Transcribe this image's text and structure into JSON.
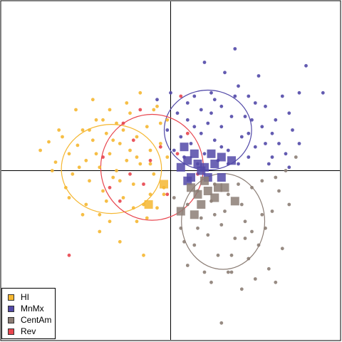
{
  "chart_data": {
    "type": "scatter",
    "title": "",
    "xlabel": "",
    "ylabel": "",
    "xlim": [
      -1.0,
      1.0
    ],
    "ylim": [
      -1.0,
      1.0
    ],
    "axes_lines": {
      "x": 0,
      "y": 0
    },
    "grid": false,
    "legend": {
      "placement": "bottom-left",
      "entries": [
        "HI",
        "MnMx",
        "CentAm",
        "Rev"
      ]
    },
    "series": [
      {
        "name": "HI",
        "color": "#F5B731",
        "points": [
          [
            -0.77,
            0.12
          ],
          [
            -0.72,
            0.17
          ],
          [
            -0.68,
            0.05
          ],
          [
            -0.64,
            0.2
          ],
          [
            -0.6,
            0.1
          ],
          [
            -0.58,
            -0.02
          ],
          [
            -0.55,
            0.15
          ],
          [
            -0.52,
            0.24
          ],
          [
            -0.5,
            0.06
          ],
          [
            -0.48,
            -0.06
          ],
          [
            -0.46,
            0.18
          ],
          [
            -0.44,
            0.3
          ],
          [
            -0.42,
            0.02
          ],
          [
            -0.4,
            -0.12
          ],
          [
            -0.38,
            0.22
          ],
          [
            -0.36,
            0.1
          ],
          [
            -0.34,
            -0.04
          ],
          [
            -0.32,
            0.28
          ],
          [
            -0.3,
            0.16
          ],
          [
            -0.28,
            -0.16
          ],
          [
            -0.26,
            0.06
          ],
          [
            -0.24,
            0.34
          ],
          [
            -0.22,
            -0.08
          ],
          [
            -0.2,
            0.2
          ],
          [
            -0.18,
            0.04
          ],
          [
            -0.16,
            -0.2
          ],
          [
            -0.14,
            0.26
          ],
          [
            -0.12,
            0.12
          ],
          [
            -0.1,
            -0.02
          ],
          [
            -0.08,
            0.38
          ],
          [
            -0.06,
            0.16
          ],
          [
            -0.04,
            -0.1
          ],
          [
            -0.02,
            0.08
          ],
          [
            -0.36,
            -0.3
          ],
          [
            -0.42,
            -0.26
          ],
          [
            -0.3,
            -0.42
          ],
          [
            -0.2,
            -0.3
          ],
          [
            -0.12,
            -0.14
          ],
          [
            -0.5,
            -0.2
          ],
          [
            -0.62,
            -0.1
          ],
          [
            -0.7,
            0.0
          ],
          [
            -0.26,
            0.4
          ],
          [
            -0.18,
            0.46
          ],
          [
            -0.1,
            0.36
          ],
          [
            -0.06,
            0.28
          ],
          [
            -0.56,
            0.36
          ],
          [
            -0.46,
            0.42
          ],
          [
            -0.38,
            -0.18
          ],
          [
            -0.3,
            -0.06
          ],
          [
            -0.22,
            -0.22
          ],
          [
            -0.14,
            -0.28
          ],
          [
            -0.16,
            -0.5
          ],
          [
            -0.04,
            -0.14
          ],
          [
            -0.02,
            0.3
          ],
          [
            -0.66,
            0.24
          ],
          [
            -0.24,
            0.12
          ],
          [
            -0.34,
            0.18
          ],
          [
            -0.44,
            0.1
          ],
          [
            -0.54,
            0.02
          ],
          [
            -0.48,
            0.24
          ],
          [
            -0.4,
            0.3
          ],
          [
            -0.32,
            0.0
          ],
          [
            -0.28,
            0.24
          ],
          [
            -0.08,
            -0.22
          ],
          [
            -0.6,
            -0.16
          ],
          [
            -0.52,
            -0.26
          ],
          [
            -0.42,
            -0.36
          ],
          [
            -0.36,
            0.36
          ],
          [
            -0.2,
            0.08
          ],
          [
            -0.12,
            0.04
          ]
        ],
        "centroids": [
          [
            -0.04,
            -0.08
          ],
          [
            -0.13,
            -0.2
          ]
        ],
        "ellipse": {
          "cx": -0.35,
          "cy": 0.01,
          "rx": 0.296,
          "ry": 0.263,
          "angle": 0
        }
      },
      {
        "name": "MnMx",
        "color": "#5249A8",
        "points": [
          [
            0.2,
            0.64
          ],
          [
            0.32,
            0.58
          ],
          [
            0.38,
            0.72
          ],
          [
            0.24,
            0.46
          ],
          [
            0.4,
            0.5
          ],
          [
            0.46,
            0.44
          ],
          [
            0.52,
            0.56
          ],
          [
            0.56,
            0.38
          ],
          [
            0.48,
            0.3
          ],
          [
            0.6,
            0.22
          ],
          [
            0.64,
            0.16
          ],
          [
            0.7,
            0.34
          ],
          [
            0.76,
            0.46
          ],
          [
            0.8,
            0.62
          ],
          [
            0.9,
            0.46
          ],
          [
            0.68,
            0.1
          ],
          [
            0.58,
            0.04
          ],
          [
            0.5,
            0.14
          ],
          [
            0.42,
            0.2
          ],
          [
            0.36,
            0.32
          ],
          [
            0.3,
            0.38
          ],
          [
            0.26,
            0.18
          ],
          [
            0.22,
            0.28
          ],
          [
            0.18,
            0.36
          ],
          [
            0.14,
            0.44
          ],
          [
            0.1,
            0.3
          ],
          [
            0.06,
            0.2
          ],
          [
            0.02,
            0.12
          ],
          [
            -0.02,
            0.24
          ],
          [
            0.08,
            0.08
          ],
          [
            0.12,
            0.16
          ],
          [
            0.16,
            0.04
          ],
          [
            0.2,
            0.1
          ],
          [
            0.28,
            0.06
          ],
          [
            0.34,
            0.12
          ],
          [
            0.4,
            0.04
          ],
          [
            0.44,
            0.32
          ],
          [
            0.5,
            0.4
          ],
          [
            0.54,
            0.26
          ],
          [
            0.62,
            0.3
          ],
          [
            0.66,
            0.44
          ],
          [
            0.72,
            0.24
          ],
          [
            0.38,
            0.44
          ],
          [
            0.3,
            0.26
          ],
          [
            0.24,
            0.34
          ],
          [
            0.18,
            0.22
          ],
          [
            0.1,
            0.4
          ],
          [
            0.04,
            0.34
          ],
          [
            -0.08,
            0.42
          ],
          [
            0.0,
            0.46
          ],
          [
            0.46,
            0.08
          ],
          [
            0.56,
            0.16
          ],
          [
            0.6,
            0.08
          ],
          [
            0.34,
            0.04
          ],
          [
            0.26,
            0.42
          ],
          [
            0.14,
            0.26
          ],
          [
            0.46,
            0.22
          ],
          [
            0.3,
            0.14
          ],
          [
            0.7,
            0.02
          ],
          [
            0.76,
            0.16
          ]
        ],
        "centroids": [
          [
            0.08,
            0.14
          ],
          [
            0.14,
            0.1
          ],
          [
            0.24,
            0.1
          ],
          [
            0.3,
            0.08
          ],
          [
            0.36,
            0.06
          ],
          [
            0.1,
            0.06
          ],
          [
            0.16,
            0.04
          ],
          [
            0.2,
            0.02
          ],
          [
            0.26,
            0.04
          ],
          [
            0.12,
            -0.04
          ],
          [
            0.22,
            -0.04
          ],
          [
            0.3,
            -0.04
          ],
          [
            0.06,
            0.02
          ],
          [
            0.18,
            0.0
          ],
          [
            0.1,
            -0.06
          ]
        ],
        "ellipse": {
          "cx": 0.22,
          "cy": 0.24,
          "rx": 0.258,
          "ry": 0.236,
          "angle": 0
        }
      },
      {
        "name": "CentAm",
        "color": "#8C7E76",
        "points": [
          [
            0.3,
            -0.9
          ],
          [
            0.24,
            -0.66
          ],
          [
            0.36,
            -0.6
          ],
          [
            0.46,
            -0.52
          ],
          [
            0.52,
            -0.44
          ],
          [
            0.56,
            -0.34
          ],
          [
            0.6,
            -0.24
          ],
          [
            0.64,
            -0.12
          ],
          [
            0.7,
            -0.2
          ],
          [
            0.44,
            -0.3
          ],
          [
            0.38,
            -0.4
          ],
          [
            0.32,
            -0.24
          ],
          [
            0.28,
            -0.5
          ],
          [
            0.22,
            -0.38
          ],
          [
            0.18,
            -0.28
          ],
          [
            0.14,
            -0.44
          ],
          [
            0.1,
            -0.2
          ],
          [
            0.06,
            -0.34
          ],
          [
            0.02,
            -0.16
          ],
          [
            0.16,
            -0.12
          ],
          [
            0.26,
            -0.08
          ],
          [
            0.34,
            -0.14
          ],
          [
            0.42,
            -0.2
          ],
          [
            0.48,
            -0.1
          ],
          [
            0.54,
            -0.06
          ],
          [
            0.62,
            -0.04
          ],
          [
            0.68,
            0.0
          ],
          [
            0.74,
            0.08
          ],
          [
            0.5,
            -0.64
          ],
          [
            0.42,
            -0.7
          ],
          [
            0.58,
            -0.58
          ],
          [
            0.66,
            -0.46
          ],
          [
            0.1,
            -0.56
          ],
          [
            0.2,
            -0.6
          ],
          [
            0.26,
            -0.26
          ],
          [
            0.36,
            -0.5
          ],
          [
            0.44,
            -0.4
          ],
          [
            0.08,
            -0.42
          ],
          [
            0.4,
            -0.08
          ],
          [
            0.62,
            -0.66
          ],
          [
            0.16,
            -0.34
          ],
          [
            0.3,
            -0.32
          ],
          [
            0.54,
            -0.26
          ],
          [
            0.48,
            -0.36
          ],
          [
            0.34,
            -0.6
          ],
          [
            0.24,
            -0.18
          ]
        ],
        "centroids": [
          [
            0.12,
            -0.1
          ],
          [
            0.16,
            -0.14
          ],
          [
            0.22,
            -0.12
          ],
          [
            0.28,
            -0.1
          ],
          [
            0.18,
            -0.2
          ],
          [
            0.26,
            -0.16
          ],
          [
            0.06,
            -0.24
          ],
          [
            0.14,
            -0.26
          ],
          [
            0.32,
            -0.1
          ],
          [
            0.2,
            -0.06
          ],
          [
            0.38,
            -0.18
          ]
        ],
        "ellipse": {
          "cx": 0.31,
          "cy": -0.3,
          "rx": 0.246,
          "ry": 0.283,
          "angle": 0
        }
      },
      {
        "name": "Rev",
        "color": "#E8454E",
        "points": [
          [
            -0.6,
            -0.5
          ],
          [
            -0.28,
            0.28
          ],
          [
            -0.22,
            0.18
          ],
          [
            -0.12,
            0.06
          ],
          [
            -0.06,
            0.14
          ],
          [
            -0.02,
            -0.14
          ],
          [
            -0.18,
            0.36
          ],
          [
            -0.36,
            -0.1
          ],
          [
            -0.3,
            -0.18
          ],
          [
            0.04,
            0.1
          ],
          [
            0.1,
            0.22
          ],
          [
            0.06,
            0.44
          ],
          [
            -0.16,
            -0.08
          ],
          [
            -0.24,
            -0.02
          ],
          [
            0.16,
            -0.02
          ],
          [
            -0.4,
            0.08
          ]
        ],
        "centroids": [],
        "ellipse": {
          "cx": -0.11,
          "cy": 0.02,
          "rx": 0.303,
          "ry": 0.313,
          "angle": 0
        }
      }
    ]
  }
}
